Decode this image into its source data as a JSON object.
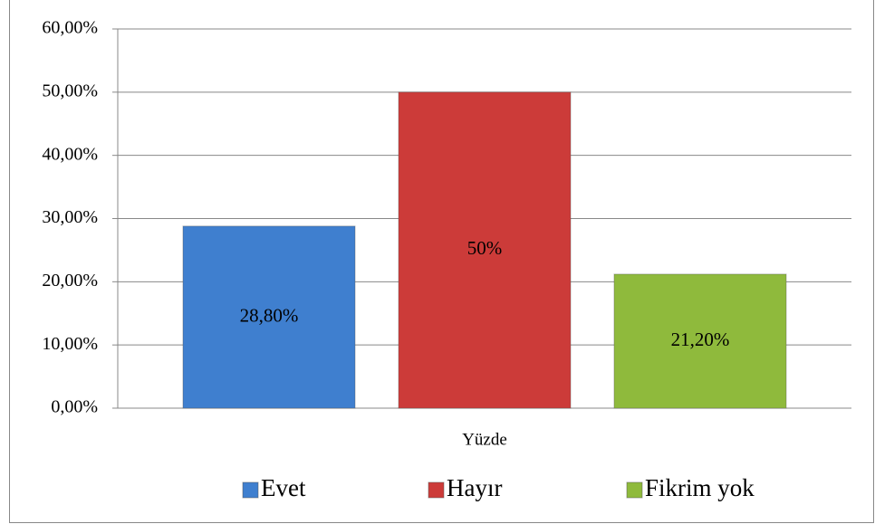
{
  "chart_data": {
    "type": "bar",
    "categories": [
      "Yüzde"
    ],
    "series": [
      {
        "name": "Evet",
        "color": "#3f7fcf",
        "values": [
          28.8
        ],
        "value_labels": [
          "28,80%"
        ]
      },
      {
        "name": "Hayır",
        "color": "#cc3b39",
        "values": [
          50
        ],
        "value_labels": [
          "50%"
        ]
      },
      {
        "name": "Fikrim yok",
        "color": "#8fba3c",
        "values": [
          21.2
        ],
        "value_labels": [
          "21,20%"
        ]
      }
    ],
    "ylim": [
      0,
      60
    ],
    "yticks": [
      {
        "value": 0,
        "label": "0,00%"
      },
      {
        "value": 10,
        "label": "10,00%"
      },
      {
        "value": 20,
        "label": "20,00%"
      },
      {
        "value": 30,
        "label": "30,00%"
      },
      {
        "value": 40,
        "label": "40,00%"
      },
      {
        "value": 50,
        "label": "50,00%"
      },
      {
        "value": 60,
        "label": "60,00%"
      }
    ],
    "grid": true,
    "legend": "bottom"
  }
}
